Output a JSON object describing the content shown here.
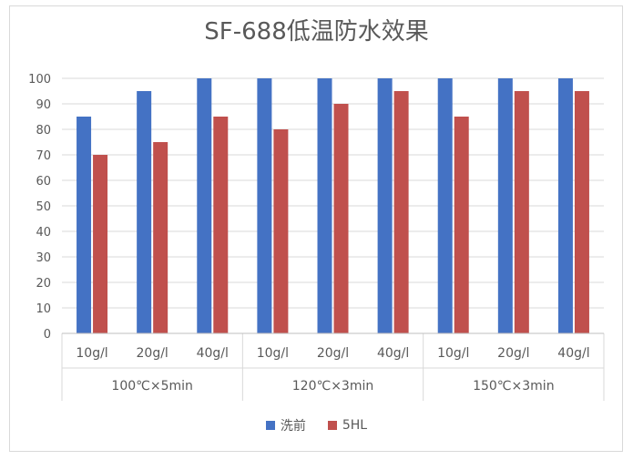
{
  "chart_data": {
    "type": "bar",
    "title": "SF-688低温防水效果",
    "groups": [
      {
        "label": "100℃×5min",
        "categories": [
          "10g/l",
          "20g/l",
          "40g/l"
        ]
      },
      {
        "label": "120℃×3min",
        "categories": [
          "10g/l",
          "20g/l",
          "40g/l"
        ]
      },
      {
        "label": "150℃×3min",
        "categories": [
          "10g/l",
          "20g/l",
          "40g/l"
        ]
      }
    ],
    "series": [
      {
        "name": "洗前",
        "color": "#4472c4",
        "values": [
          85,
          95,
          100,
          100,
          100,
          100,
          100,
          100,
          100
        ]
      },
      {
        "name": "5HL",
        "color": "#c0504d",
        "values": [
          70,
          75,
          85,
          80,
          90,
          95,
          85,
          95,
          95
        ]
      }
    ],
    "yticks": [
      "0",
      "10",
      "20",
      "30",
      "40",
      "50",
      "60",
      "70",
      "80",
      "90",
      "100"
    ],
    "ylim": [
      0,
      100
    ],
    "grid": true,
    "legend_position": "bottom"
  }
}
